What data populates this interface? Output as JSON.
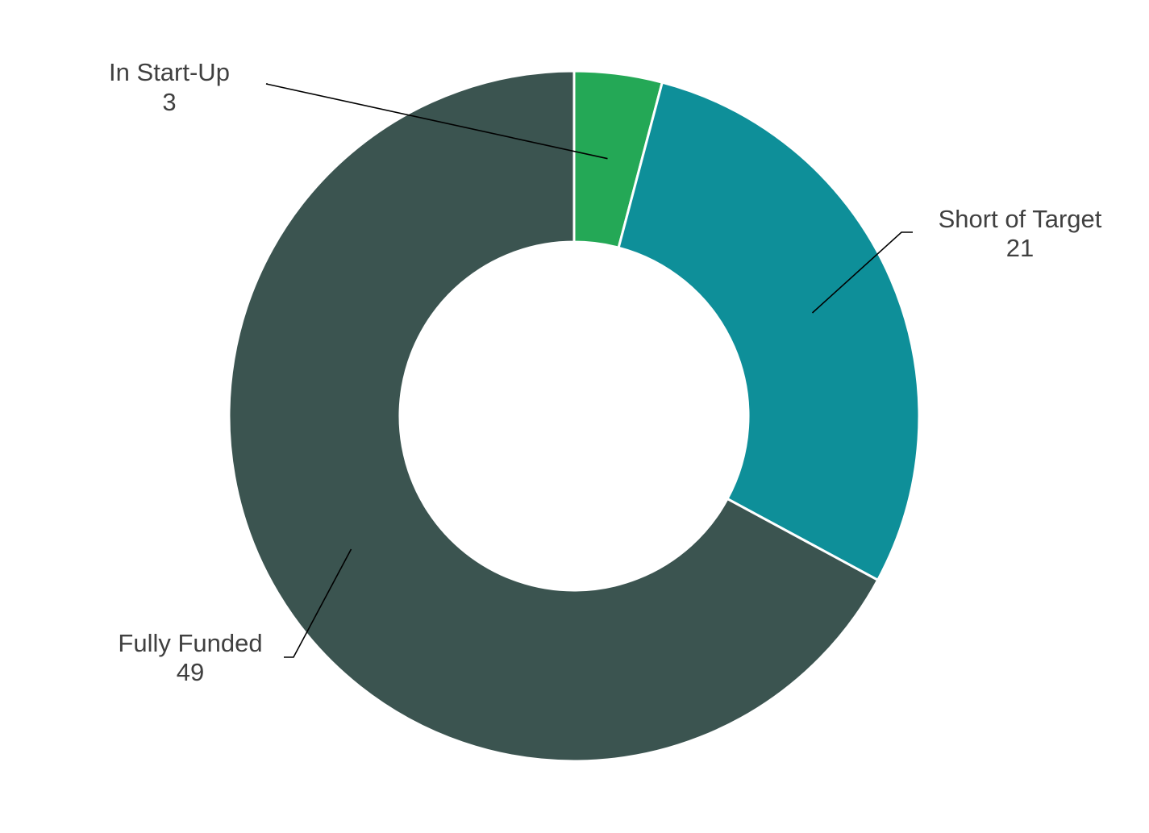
{
  "chart_data": {
    "type": "pie",
    "variant": "donut",
    "title": "",
    "categories": [
      "In Start-Up",
      "Short of Target",
      "Fully Funded"
    ],
    "values": [
      3,
      21,
      49
    ],
    "colors": [
      "#24A856",
      "#0E8F99",
      "#3B5450"
    ],
    "data_labels": [
      {
        "category": "In Start-Up",
        "value": "3"
      },
      {
        "category": "Short of Target",
        "value": "21"
      },
      {
        "category": "Fully Funded",
        "value": "49"
      }
    ],
    "start_angle": "12 o'clock",
    "direction": "clockwise",
    "legend": "none"
  }
}
